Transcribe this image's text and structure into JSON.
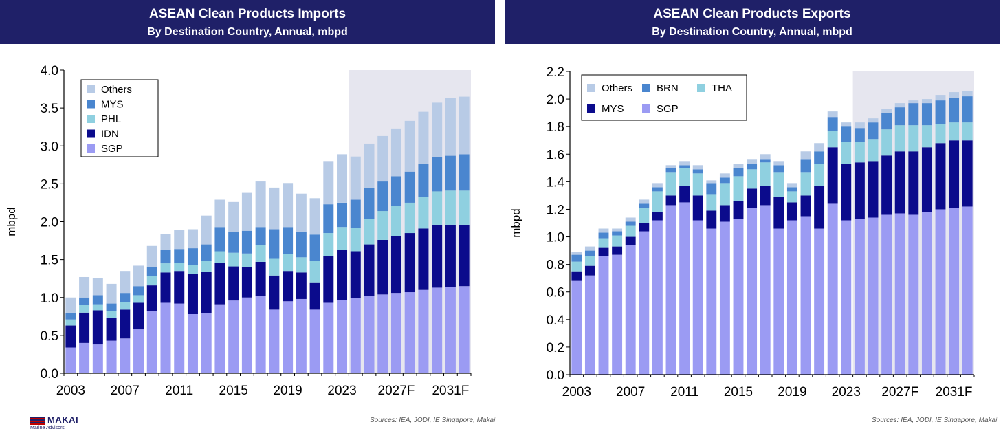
{
  "footer": {
    "logo_text": "MAKAI",
    "logo_sub": "Marine Advisors",
    "source_left": "Sources: IEA, JODI, IE Singapore, Makai",
    "source_right": "Sources: IEA, JODI, IE Singapore, Makai"
  },
  "colors": {
    "title_bar": "#1f2068",
    "SGP": "#9b9bf3",
    "IDN": "#0b0b8c",
    "MYS_imports": "#4a86cf",
    "PHL": "#8fd0e0",
    "Others": "#b8cbe6",
    "MYS_exports": "#0b0b8c",
    "BRN": "#4a86cf",
    "THA": "#8fd0e0",
    "forecast_shade": "#e6e6ef"
  },
  "chart_data": [
    {
      "type": "bar",
      "stacked": true,
      "title": "ASEAN Clean Products Imports",
      "subtitle": "By Destination Country, Annual, mbpd",
      "ylabel": "mbpd",
      "ylim": [
        0,
        4.0
      ],
      "yticks": [
        "0.0",
        "0.5",
        "1.0",
        "1.5",
        "2.0",
        "2.5",
        "3.0",
        "3.5",
        "4.0"
      ],
      "categories": [
        "2003",
        "2004",
        "2005",
        "2006",
        "2007",
        "2008",
        "2009",
        "2010",
        "2011",
        "2012",
        "2013",
        "2014",
        "2015",
        "2016",
        "2017",
        "2018",
        "2019",
        "2020",
        "2021",
        "2022",
        "2023",
        "2024",
        "2025",
        "2026",
        "2027F",
        "2028",
        "2029",
        "2030",
        "2031F",
        "2032"
      ],
      "xtick_labels": [
        "2003",
        "2007",
        "2011",
        "2015",
        "2019",
        "2023",
        "2027F",
        "2031F"
      ],
      "forecast_start": "2024",
      "grid": false,
      "legend_position": "top-left",
      "legend_order": [
        "Others",
        "MYS",
        "PHL",
        "IDN",
        "SGP"
      ],
      "series": [
        {
          "name": "SGP",
          "color_key": "SGP",
          "values": [
            0.34,
            0.4,
            0.38,
            0.43,
            0.46,
            0.58,
            0.82,
            0.93,
            0.92,
            0.78,
            0.79,
            0.91,
            0.96,
            1.0,
            1.02,
            0.84,
            0.95,
            0.98,
            0.84,
            0.93,
            0.97,
            0.99,
            1.02,
            1.04,
            1.06,
            1.07,
            1.1,
            1.13,
            1.14,
            1.15
          ]
        },
        {
          "name": "IDN",
          "color_key": "IDN",
          "values": [
            0.29,
            0.4,
            0.45,
            0.3,
            0.38,
            0.35,
            0.34,
            0.4,
            0.43,
            0.53,
            0.55,
            0.55,
            0.45,
            0.4,
            0.45,
            0.45,
            0.4,
            0.35,
            0.36,
            0.62,
            0.66,
            0.62,
            0.68,
            0.72,
            0.75,
            0.78,
            0.81,
            0.83,
            0.82,
            0.81
          ]
        },
        {
          "name": "PHL",
          "color_key": "PHL",
          "values": [
            0.08,
            0.1,
            0.08,
            0.09,
            0.1,
            0.1,
            0.12,
            0.12,
            0.11,
            0.12,
            0.14,
            0.15,
            0.18,
            0.18,
            0.22,
            0.22,
            0.22,
            0.2,
            0.28,
            0.3,
            0.3,
            0.31,
            0.34,
            0.38,
            0.4,
            0.4,
            0.42,
            0.44,
            0.45,
            0.45
          ]
        },
        {
          "name": "MYS",
          "color_key": "MYS_imports",
          "values": [
            0.09,
            0.1,
            0.12,
            0.1,
            0.12,
            0.12,
            0.12,
            0.18,
            0.18,
            0.22,
            0.22,
            0.32,
            0.27,
            0.3,
            0.24,
            0.39,
            0.36,
            0.34,
            0.35,
            0.38,
            0.32,
            0.37,
            0.4,
            0.39,
            0.39,
            0.41,
            0.43,
            0.45,
            0.46,
            0.48
          ]
        },
        {
          "name": "Others",
          "color_key": "Others",
          "values": [
            0.2,
            0.27,
            0.23,
            0.26,
            0.29,
            0.27,
            0.28,
            0.21,
            0.25,
            0.25,
            0.38,
            0.36,
            0.4,
            0.5,
            0.6,
            0.55,
            0.58,
            0.5,
            0.48,
            0.57,
            0.64,
            0.57,
            0.59,
            0.6,
            0.63,
            0.67,
            0.69,
            0.72,
            0.76,
            0.76
          ]
        }
      ]
    },
    {
      "type": "bar",
      "stacked": true,
      "title": "ASEAN Clean Products Exports",
      "subtitle": "By Destination Country, Annual, mbpd",
      "ylabel": "mbpd",
      "ylim": [
        0,
        2.2
      ],
      "yticks": [
        "0.0",
        "0.2",
        "0.4",
        "0.6",
        "0.8",
        "1.0",
        "1.2",
        "1.4",
        "1.6",
        "1.8",
        "2.0",
        "2.2"
      ],
      "categories": [
        "2003",
        "2004",
        "2005",
        "2006",
        "2007",
        "2008",
        "2009",
        "2010",
        "2011",
        "2012",
        "2013",
        "2014",
        "2015",
        "2016",
        "2017",
        "2018",
        "2019",
        "2020",
        "2021",
        "2022",
        "2023",
        "2024",
        "2025",
        "2026",
        "2027F",
        "2028",
        "2029",
        "2030",
        "2031F",
        "2032"
      ],
      "xtick_labels": [
        "2003",
        "2007",
        "2011",
        "2015",
        "2019",
        "2023",
        "2027F",
        "2031F"
      ],
      "forecast_start": "2024",
      "grid": false,
      "legend_position": "top-left",
      "legend_rows": [
        [
          "Others",
          "BRN",
          "THA"
        ],
        [
          "MYS",
          "SGP"
        ]
      ],
      "series": [
        {
          "name": "SGP",
          "color_key": "SGP",
          "values": [
            0.68,
            0.72,
            0.86,
            0.87,
            0.94,
            1.04,
            1.12,
            1.23,
            1.25,
            1.12,
            1.06,
            1.11,
            1.13,
            1.21,
            1.23,
            1.06,
            1.12,
            1.15,
            1.06,
            1.24,
            1.12,
            1.13,
            1.14,
            1.16,
            1.17,
            1.16,
            1.18,
            1.2,
            1.21,
            1.22
          ]
        },
        {
          "name": "MYS",
          "color_key": "MYS_exports",
          "values": [
            0.07,
            0.07,
            0.06,
            0.06,
            0.06,
            0.06,
            0.06,
            0.07,
            0.12,
            0.18,
            0.13,
            0.12,
            0.13,
            0.14,
            0.14,
            0.23,
            0.13,
            0.15,
            0.31,
            0.41,
            0.41,
            0.41,
            0.41,
            0.43,
            0.45,
            0.46,
            0.47,
            0.48,
            0.49,
            0.48
          ]
        },
        {
          "name": "THA",
          "color_key": "THA",
          "values": [
            0.07,
            0.07,
            0.07,
            0.08,
            0.08,
            0.11,
            0.15,
            0.17,
            0.13,
            0.16,
            0.12,
            0.16,
            0.18,
            0.14,
            0.17,
            0.18,
            0.08,
            0.17,
            0.16,
            0.12,
            0.16,
            0.15,
            0.16,
            0.19,
            0.19,
            0.19,
            0.16,
            0.14,
            0.13,
            0.13
          ]
        },
        {
          "name": "BRN",
          "color_key": "BRN",
          "values": [
            0.05,
            0.04,
            0.04,
            0.03,
            0.03,
            0.03,
            0.03,
            0.03,
            0.02,
            0.03,
            0.08,
            0.04,
            0.06,
            0.04,
            0.02,
            0.05,
            0.03,
            0.09,
            0.09,
            0.1,
            0.11,
            0.1,
            0.12,
            0.12,
            0.13,
            0.16,
            0.16,
            0.17,
            0.18,
            0.19
          ]
        },
        {
          "name": "Others",
          "color_key": "Others",
          "values": [
            0.02,
            0.03,
            0.03,
            0.02,
            0.03,
            0.03,
            0.03,
            0.02,
            0.03,
            0.03,
            0.02,
            0.03,
            0.03,
            0.03,
            0.04,
            0.03,
            0.03,
            0.06,
            0.06,
            0.04,
            0.03,
            0.04,
            0.03,
            0.03,
            0.03,
            0.02,
            0.03,
            0.04,
            0.04,
            0.04
          ]
        }
      ]
    }
  ]
}
